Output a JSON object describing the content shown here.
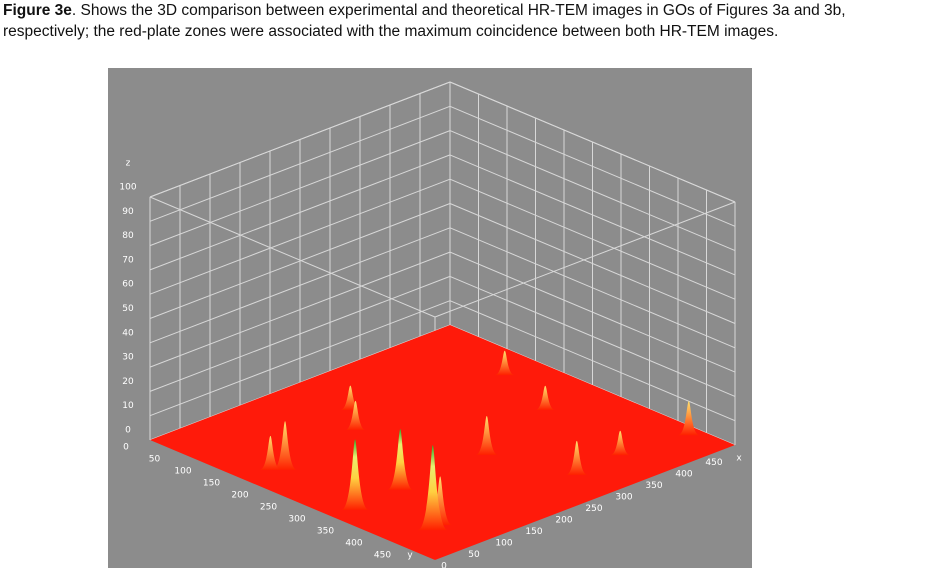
{
  "caption": {
    "label": "Figure 3e",
    "text": ". Shows the 3D comparison between experimental and theoretical HR-TEM images in GOs of Figures 3a and 3b, respectively; the red-plate zones were associated with the maximum coincidence between both HR-TEM images."
  },
  "chart_data": {
    "type": "surface3d",
    "x_label": "x",
    "y_label": "y",
    "z_label": "z",
    "xlim": [
      0,
      500
    ],
    "ylim": [
      0,
      500
    ],
    "zlim": [
      0,
      100
    ],
    "xticks": [
      0,
      50,
      100,
      150,
      200,
      250,
      300,
      350,
      400,
      450
    ],
    "yticks": [
      0,
      50,
      100,
      150,
      200,
      250,
      300,
      350,
      400,
      450
    ],
    "zticks": [
      0,
      10,
      20,
      30,
      40,
      50,
      60,
      70,
      80,
      90,
      100
    ],
    "plane_color": "#ff1a0a",
    "background": "#8c8c8c",
    "grid": true,
    "peaks": [
      {
        "x": 444,
        "y": 155,
        "z": 10
      },
      {
        "x": 237,
        "y": 102,
        "z": 10
      },
      {
        "x": 407,
        "y": 265,
        "z": 10
      },
      {
        "x": 200,
        "y": 150,
        "z": 12
      },
      {
        "x": 480,
        "y": 440,
        "z": 14
      },
      {
        "x": 263,
        "y": 314,
        "z": 16
      },
      {
        "x": 379,
        "y": 426,
        "z": 10
      },
      {
        "x": 56,
        "y": 178,
        "z": 20
      },
      {
        "x": 43,
        "y": 166,
        "z": 14
      },
      {
        "x": 300,
        "y": 433,
        "z": 14
      },
      {
        "x": 115,
        "y": 318,
        "z": 25
      },
      {
        "x": 34,
        "y": 324,
        "z": 29
      },
      {
        "x": 77,
        "y": 428,
        "z": 20
      },
      {
        "x": 60,
        "y": 433,
        "z": 35
      }
    ]
  }
}
